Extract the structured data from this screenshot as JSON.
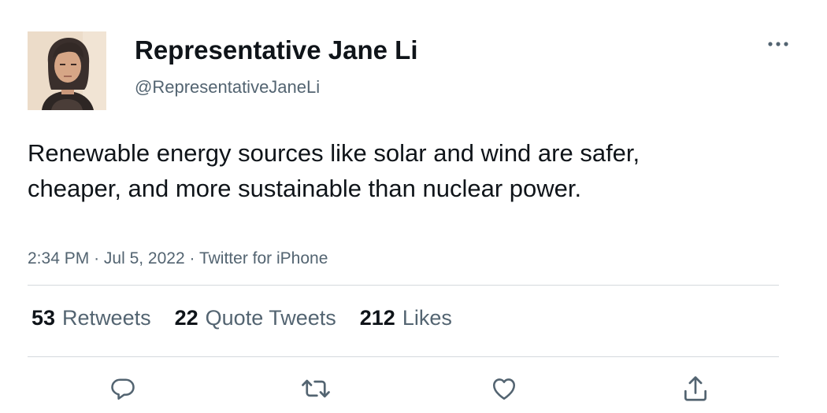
{
  "author": {
    "display_name": "Representative Jane Li",
    "handle": "@RepresentativeJaneLi"
  },
  "tweet": {
    "text": "Renewable energy sources like solar and wind are safer, cheaper, and more sustainable than nuclear power.",
    "time": "2:34 PM",
    "date": "Jul 5, 2022",
    "source": "Twitter for iPhone",
    "separator": "·"
  },
  "stats": {
    "retweets": {
      "count": "53",
      "label": "Retweets"
    },
    "quote_tweets": {
      "count": "22",
      "label": "Quote Tweets"
    },
    "likes": {
      "count": "212",
      "label": "Likes"
    }
  },
  "icons": {
    "more": "more-horizontal-icon",
    "reply": "reply-icon",
    "retweet": "retweet-icon",
    "like": "heart-icon",
    "share": "share-icon"
  },
  "colors": {
    "text_primary": "#0f1419",
    "text_secondary": "#536471",
    "divider": "#d4d9dd",
    "icon": "#536471"
  }
}
